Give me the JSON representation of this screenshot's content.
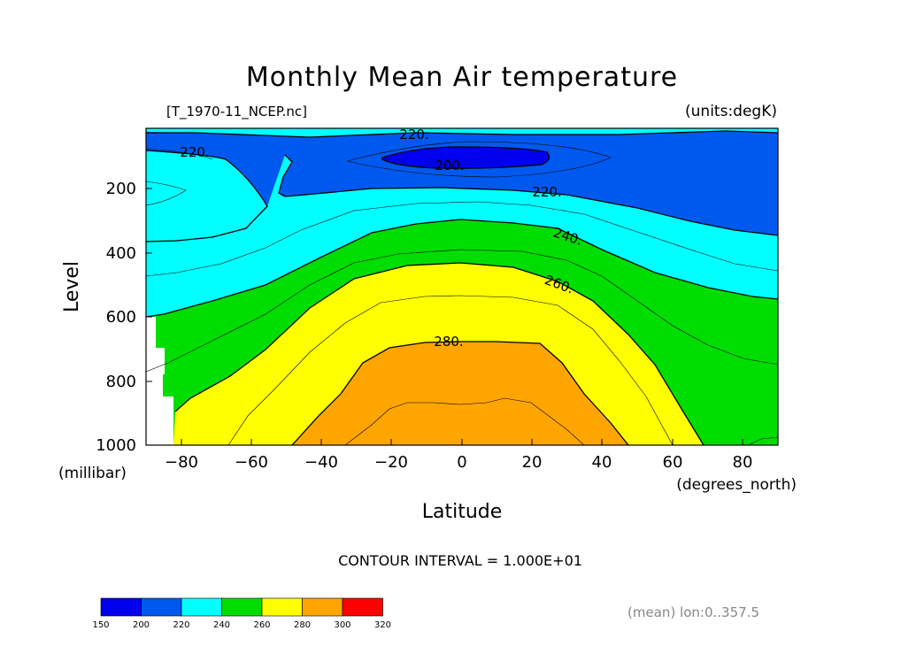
{
  "chart_data": {
    "type": "contour",
    "title": "Monthly Mean Air temperature",
    "file_label": "[T_1970-11_NCEP.nc]",
    "units_label": "(units:degK)",
    "xlabel": "Latitude",
    "xunits": "(degrees_north)",
    "ylabel": "Level",
    "yunits": "(millibar)",
    "xlim": [
      -90,
      90
    ],
    "ylim": [
      1000,
      0
    ],
    "y_inverted": true,
    "x_ticks": [
      -80,
      -60,
      -40,
      -20,
      0,
      20,
      40,
      60,
      80
    ],
    "x_tick_labels": [
      "−80",
      "−60",
      "−40",
      "−20",
      "0",
      "20",
      "40",
      "60",
      "80"
    ],
    "y_ticks": [
      200,
      400,
      600,
      800,
      1000
    ],
    "y_tick_labels": [
      "200",
      "400",
      "600",
      "800",
      "1000"
    ],
    "contour_interval_text": "CONTOUR INTERVAL = 1.000E+01",
    "note_text": "(mean) lon:0..357.5",
    "contour_labels": [
      {
        "text": "220.",
        "x": -70,
        "y": 75
      },
      {
        "text": "220.",
        "x": -15,
        "y": 20
      },
      {
        "text": "200.",
        "x": -5,
        "y": 110
      },
      {
        "text": "220.",
        "x": 27,
        "y": 205
      },
      {
        "text": "240.",
        "x": 33,
        "y": 340
      },
      {
        "text": "260.",
        "x": 31,
        "y": 520
      },
      {
        "text": "280.",
        "x": -5,
        "y": 715
      }
    ],
    "colorbar": {
      "levels": [
        150,
        200,
        220,
        240,
        260,
        280,
        300,
        320
      ],
      "level_labels": [
        "150",
        "200",
        "220",
        "240",
        "260",
        "280",
        "300",
        "320"
      ],
      "colors": [
        "#0000ee",
        "#0059ee",
        "#00ffff",
        "#00dd00",
        "#ffff00",
        "#ffa500",
        "#ff0000"
      ]
    },
    "fill_bands": [
      {
        "level": 200,
        "color": "#0000ee",
        "x": [
          -22,
          -15,
          -5,
          5,
          15,
          22,
          15,
          5,
          -5,
          -15
        ],
        "y": [
          90,
          80,
          76,
          76,
          80,
          90,
          120,
          124,
          124,
          120
        ]
      },
      {
        "level": 280,
        "color": "#ffa500",
        "x": [
          -53,
          -45,
          -38,
          -30,
          -20,
          -10,
          0,
          10,
          20,
          28,
          35,
          42,
          46
        ],
        "y": [
          1000,
          950,
          880,
          800,
          730,
          695,
          690,
          690,
          690,
          720,
          800,
          900,
          1000
        ]
      }
    ],
    "grid": false
  }
}
